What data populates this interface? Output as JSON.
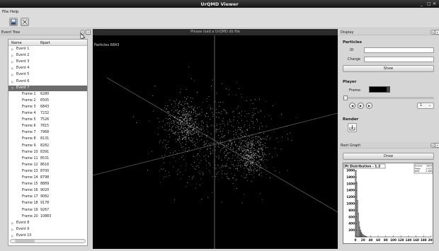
{
  "window": {
    "title": "UrQMD Viewer",
    "controls": [
      "_",
      "□",
      "✕"
    ]
  },
  "menu": {
    "items": [
      "File",
      "Help"
    ]
  },
  "toolbar": {
    "icons": [
      "save-icon",
      "close-file-icon"
    ]
  },
  "event_tree": {
    "title": "Event Tree",
    "columns": [
      "Name",
      "Npart"
    ],
    "rows": [
      {
        "name": "Event 1",
        "npart": "",
        "level": 0,
        "expandable": true
      },
      {
        "name": "Event 2",
        "npart": "",
        "level": 0,
        "expandable": true
      },
      {
        "name": "Event 3",
        "npart": "",
        "level": 0,
        "expandable": true
      },
      {
        "name": "Event 4",
        "npart": "",
        "level": 0,
        "expandable": true
      },
      {
        "name": "Event 5",
        "npart": "",
        "level": 0,
        "expandable": true
      },
      {
        "name": "Event 6",
        "npart": "",
        "level": 0,
        "expandable": true
      },
      {
        "name": "Event 7",
        "npart": "",
        "level": 0,
        "expandable": true,
        "selected": true
      },
      {
        "name": "Frame 1",
        "npart": "6280",
        "level": 1
      },
      {
        "name": "Frame 2",
        "npart": "6505",
        "level": 1
      },
      {
        "name": "Frame 3",
        "npart": "6843",
        "level": 1
      },
      {
        "name": "Frame 4",
        "npart": "7232",
        "level": 1
      },
      {
        "name": "Frame 5",
        "npart": "7526",
        "level": 1
      },
      {
        "name": "Frame 6",
        "npart": "7815",
        "level": 1
      },
      {
        "name": "Frame 7",
        "npart": "7968",
        "level": 1
      },
      {
        "name": "Frame 8",
        "npart": "8131",
        "level": 1
      },
      {
        "name": "Frame 9",
        "npart": "8282",
        "level": 1
      },
      {
        "name": "Frame 10",
        "npart": "8391",
        "level": 1
      },
      {
        "name": "Frame 11",
        "npart": "8531",
        "level": 1
      },
      {
        "name": "Frame 12",
        "npart": "8616",
        "level": 1
      },
      {
        "name": "Frame 13",
        "npart": "8700",
        "level": 1
      },
      {
        "name": "Frame 14",
        "npart": "8798",
        "level": 1
      },
      {
        "name": "Frame 15",
        "npart": "8889",
        "level": 1
      },
      {
        "name": "Frame 16",
        "npart": "9020",
        "level": 1
      },
      {
        "name": "Frame 17",
        "npart": "9082",
        "level": 1
      },
      {
        "name": "Frame 18",
        "npart": "9178",
        "level": 1
      },
      {
        "name": "Frame 19",
        "npart": "9267",
        "level": 1
      },
      {
        "name": "Frame 20",
        "npart": "10883",
        "level": 1
      },
      {
        "name": "Event 8",
        "npart": "",
        "level": 0,
        "expandable": true
      },
      {
        "name": "Event 9",
        "npart": "",
        "level": 0,
        "expandable": true
      },
      {
        "name": "Event 10",
        "npart": "",
        "level": 0,
        "expandable": true
      }
    ]
  },
  "viewer": {
    "header": "Please load a UrQMD db file",
    "particle_count": "Particles 6843",
    "background": "#000000"
  },
  "display": {
    "title": "Display",
    "particles_label": "Particles",
    "id_label": "ID",
    "id_value": "",
    "charge_label": "Charge",
    "charge_value": "",
    "show_button": "Show",
    "player_label": "Player",
    "frame_label": "Frame:",
    "frame_value": "",
    "speed_value": "1",
    "render_label": "Render"
  },
  "root_graph": {
    "title": "Root Graph",
    "draw_button": "Draw",
    "stats": {
      "entries_label": "Entries",
      "entries": "6843",
      "mean_label": "Mean",
      "mean": "2.032",
      "rms_label": "RMS",
      "rms": "2.468"
    }
  },
  "chart_data": {
    "type": "bar",
    "title": "Pt Distribution - 1.2",
    "xlabel": "",
    "ylabel": "",
    "xlim": [
      0,
      200
    ],
    "ylim": [
      0,
      2000
    ],
    "x_ticks": [
      0,
      20,
      40,
      60,
      80,
      100,
      120,
      140,
      160,
      180,
      200
    ],
    "y_ticks": [
      200,
      400,
      600,
      800,
      1000,
      1200,
      1400,
      1600,
      1800,
      2000
    ],
    "x": [
      1,
      3,
      5,
      7,
      9,
      11,
      13,
      15,
      17,
      19,
      21,
      23,
      25,
      27,
      29
    ],
    "values": [
      2000,
      1650,
      1100,
      720,
      460,
      300,
      210,
      150,
      110,
      80,
      60,
      45,
      30,
      20,
      12
    ]
  }
}
